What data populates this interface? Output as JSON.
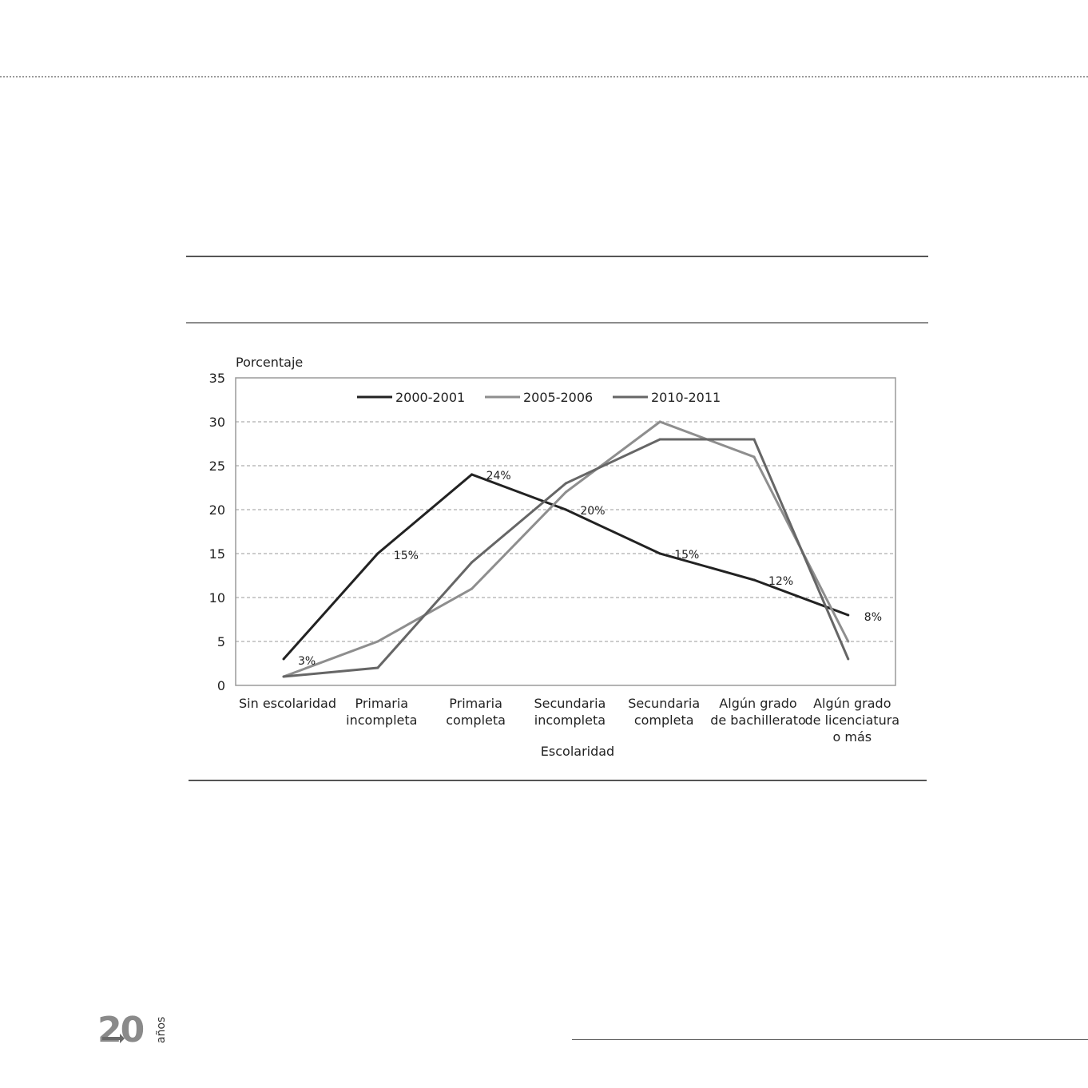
{
  "logo": {
    "number": "20",
    "word": "años"
  },
  "chart_data": {
    "type": "line",
    "ylabel": "Porcentaje",
    "xlabel": "Escolaridad",
    "ylim": [
      0,
      35
    ],
    "yticks": [
      "0",
      "5",
      "10",
      "15",
      "20",
      "25",
      "30",
      "35"
    ],
    "grid": true,
    "legend_position": "top-center",
    "categories": [
      [
        "Sin escolaridad"
      ],
      [
        "Primaria",
        "incompleta"
      ],
      [
        "Primaria",
        "completa"
      ],
      [
        "Secundaria",
        "incompleta"
      ],
      [
        "Secundaria",
        "completa"
      ],
      [
        "Algún grado",
        "de bachillerato"
      ],
      [
        "Algún grado",
        "de licenciatura",
        "o más"
      ]
    ],
    "series": [
      {
        "name": "2000-2001",
        "color": "#222222",
        "values": [
          3,
          15,
          24,
          20,
          15,
          12,
          8
        ],
        "data_labels": [
          "3%",
          "15%",
          "24%",
          "20%",
          "15%",
          "12%",
          "8%"
        ]
      },
      {
        "name": "2005-2006",
        "color": "#8e8e8e",
        "values": [
          1,
          5,
          11,
          22,
          30,
          26,
          5
        ]
      },
      {
        "name": "2010-2011",
        "color": "#666666",
        "values": [
          1,
          2,
          14,
          23,
          28,
          28,
          3
        ]
      }
    ]
  }
}
